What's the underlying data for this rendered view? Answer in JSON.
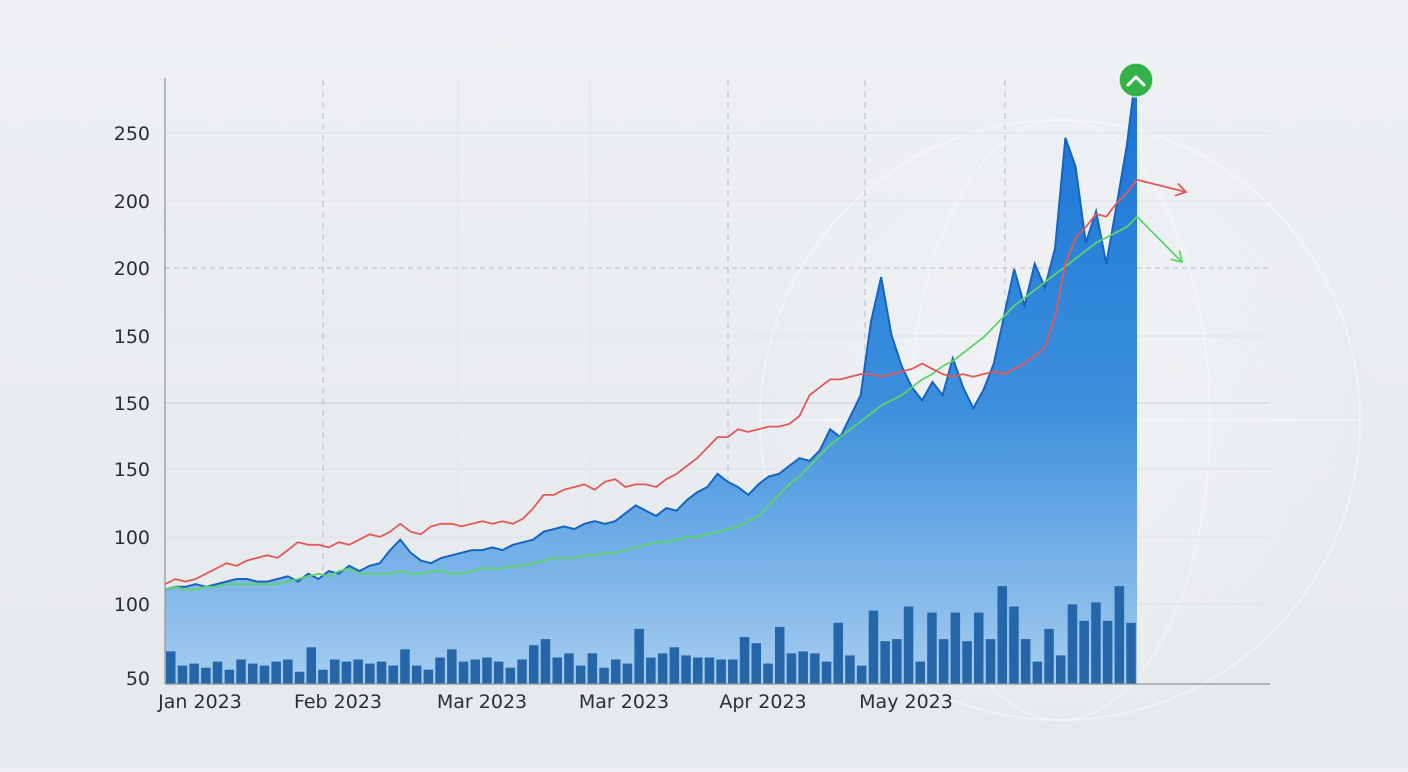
{
  "chart_data": {
    "type": "area",
    "title": "",
    "xlabel": "",
    "ylabel": "",
    "y_tick_labels": [
      "50",
      "100",
      "100",
      "150",
      "150",
      "150",
      "200",
      "200",
      "250"
    ],
    "x_tick_labels": [
      "Jan 2023",
      "Feb 2023",
      "Mar 2023",
      "Mar 2023",
      "Apr 2023",
      "May 2023"
    ],
    "ylim": [
      50,
      280
    ],
    "grid": true,
    "legend": "none",
    "colors": {
      "area": "#1f78d1",
      "area_light": "#9cc8ee",
      "volume": "#1d5fa3",
      "line_red": "#e05a5a",
      "line_green": "#5ed36a",
      "badge": "#34b24a"
    },
    "series": [
      {
        "kind": "area",
        "values": [
          86,
          87,
          87,
          88,
          87,
          88,
          89,
          90,
          90,
          89,
          89,
          90,
          91,
          89,
          92,
          90,
          93,
          92,
          95,
          93,
          95,
          96,
          101,
          105,
          100,
          97,
          96,
          98,
          99,
          100,
          101,
          101,
          102,
          101,
          103,
          104,
          105,
          108,
          109,
          110,
          109,
          111,
          112,
          111,
          112,
          115,
          118,
          116,
          114,
          117,
          116,
          120,
          123,
          125,
          130,
          127,
          125,
          122,
          126,
          129,
          130,
          133,
          136,
          135,
          139,
          147,
          144,
          152,
          160,
          188,
          205,
          183,
          171,
          163,
          158,
          165,
          160,
          174,
          163,
          155,
          162,
          172,
          190,
          208,
          194,
          210,
          201,
          216,
          258,
          247,
          218,
          230,
          210,
          232,
          255,
          286
        ]
      },
      {
        "kind": "line",
        "values": [
          88,
          90,
          89,
          90,
          92,
          94,
          96,
          95,
          97,
          98,
          99,
          98,
          101,
          104,
          103,
          103,
          102,
          104,
          103,
          105,
          107,
          106,
          108,
          111,
          108,
          107,
          110,
          111,
          111,
          110,
          111,
          112,
          111,
          112,
          111,
          113,
          117,
          122,
          122,
          124,
          125,
          126,
          124,
          127,
          128,
          125,
          126,
          126,
          125,
          128,
          130,
          133,
          136,
          140,
          144,
          144,
          147,
          146,
          147,
          148,
          148,
          149,
          152,
          160,
          163,
          166,
          166,
          167,
          168,
          168,
          167,
          168,
          169,
          170,
          172,
          170,
          168,
          167,
          168,
          167,
          168,
          169,
          168,
          170,
          172,
          175,
          178,
          190,
          210,
          220,
          224,
          229,
          228,
          233,
          237,
          242
        ]
      },
      {
        "kind": "line",
        "values": [
          86,
          87,
          86,
          86,
          87,
          87,
          88,
          88,
          88,
          88,
          88,
          88,
          89,
          90,
          91,
          92,
          91,
          93,
          94,
          92,
          92,
          92,
          92,
          93,
          92,
          92,
          93,
          93,
          92,
          92,
          93,
          94,
          94,
          94,
          95,
          95,
          96,
          97,
          98,
          98,
          98,
          99,
          99,
          100,
          100,
          101,
          102,
          103,
          104,
          104,
          105,
          106,
          106,
          107,
          108,
          109,
          110,
          112,
          114,
          118,
          122,
          126,
          129,
          133,
          137,
          141,
          144,
          147,
          150,
          153,
          156,
          158,
          160,
          163,
          166,
          168,
          171,
          173,
          176,
          179,
          182,
          186,
          190,
          194,
          197,
          200,
          203,
          206,
          209,
          212,
          215,
          218,
          220,
          222,
          224,
          228
        ]
      },
      {
        "kind": "bar",
        "values": [
          16,
          9,
          10,
          8,
          11,
          7,
          12,
          10,
          9,
          11,
          12,
          6,
          18,
          7,
          12,
          11,
          12,
          10,
          11,
          9,
          17,
          9,
          7,
          13,
          17,
          11,
          12,
          13,
          11,
          8,
          12,
          19,
          22,
          13,
          15,
          9,
          15,
          8,
          12,
          10,
          27,
          13,
          15,
          18,
          14,
          13,
          13,
          12,
          12,
          23,
          20,
          10,
          28,
          15,
          16,
          15,
          11,
          30,
          14,
          9,
          36,
          21,
          22,
          38,
          11,
          35,
          22,
          35,
          21,
          35,
          22,
          48,
          38,
          22,
          11,
          27,
          14,
          39,
          31,
          40,
          31,
          48,
          30
        ],
        "ymax_value": 100
      }
    ],
    "annotations": [
      {
        "name": "up-arrow-badge",
        "icon": "chevron-up-icon"
      }
    ]
  }
}
